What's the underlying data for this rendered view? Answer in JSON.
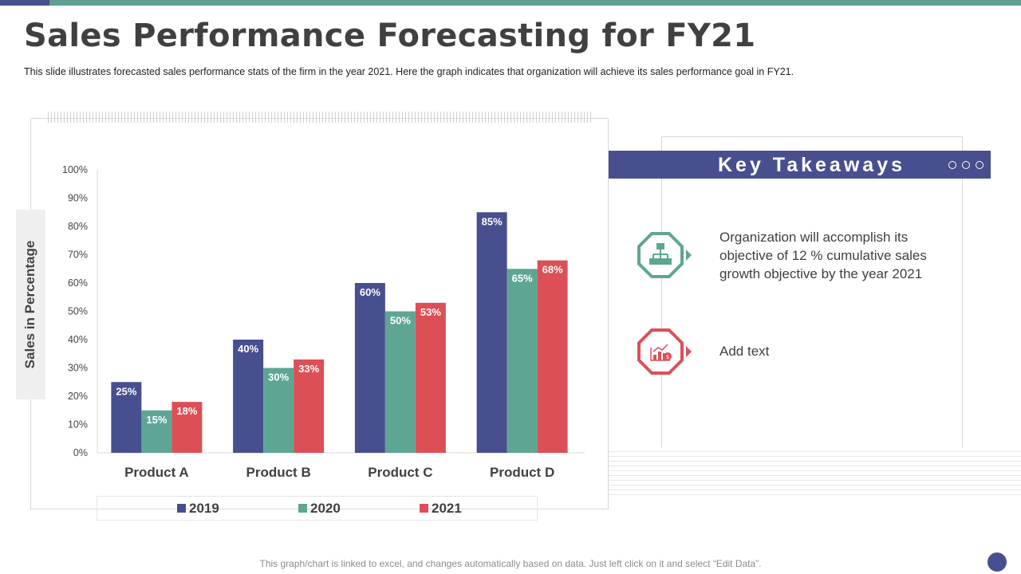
{
  "header": {
    "title": "Sales Performance Forecasting for FY21",
    "subtitle": "This slide illustrates forecasted sales performance stats of the firm in the year 2021.  Here the graph indicates that organization will achieve its sales performance goal in FY21."
  },
  "chart_data": {
    "type": "bar",
    "title": "",
    "xlabel": "",
    "ylabel": "Sales in Percentage",
    "ylim": [
      0,
      100
    ],
    "yticks": [
      "0%",
      "10%",
      "20%",
      "30%",
      "40%",
      "50%",
      "60%",
      "70%",
      "80%",
      "90%",
      "100%"
    ],
    "categories": [
      "Product A",
      "Product B",
      "Product C",
      "Product D"
    ],
    "series": [
      {
        "name": "2019",
        "color": "#474f8e",
        "values": [
          25,
          40,
          60,
          85
        ],
        "labels": [
          "25%",
          "40%",
          "60%",
          "85%"
        ]
      },
      {
        "name": "2020",
        "color": "#5fa594",
        "values": [
          15,
          30,
          50,
          65
        ],
        "labels": [
          "15%",
          "30%",
          "50%",
          "65%"
        ]
      },
      {
        "name": "2021",
        "color": "#dd4f56",
        "values": [
          18,
          33,
          53,
          68
        ],
        "labels": [
          "18%",
          "33%",
          "53%",
          "68%"
        ]
      }
    ],
    "legend_position": "bottom",
    "grid": false
  },
  "takeaways": {
    "title": "Key Takeaways",
    "items": [
      {
        "text": "Organization will accomplish its objective of 12 % cumulative sales growth objective by the year 2021",
        "icon": "hierarchy-icon",
        "color": "#5fa594"
      },
      {
        "text": "Add text",
        "icon": "bar-chart-dollar-icon",
        "color": "#dd4f56"
      }
    ]
  },
  "footer": {
    "note": "This graph/chart is linked to excel, and changes automatically based on data. Just left click on it and select “Edit Data”."
  }
}
